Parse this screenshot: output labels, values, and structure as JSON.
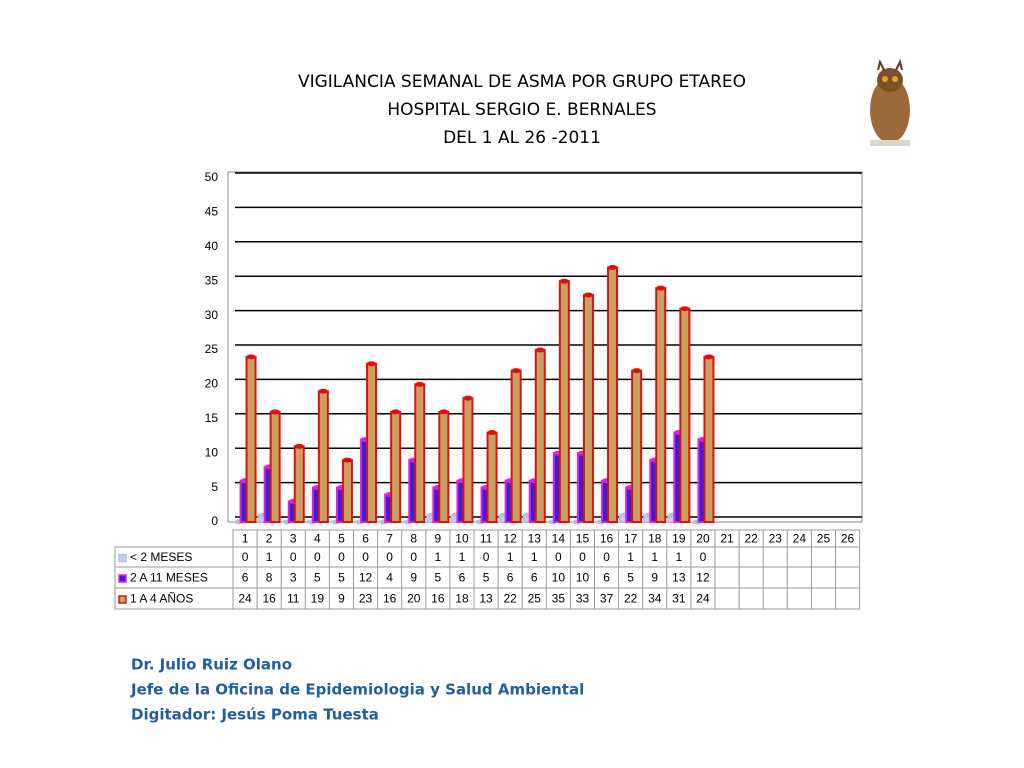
{
  "chart_data": {
    "type": "bar",
    "title": [
      "VIGILANCIA SEMANAL DE ASMA POR GRUPO ETAREO",
      "HOSPITAL SERGIO E. BERNALES",
      "DEL 1 AL 26 -2011"
    ],
    "categories": [
      "1",
      "2",
      "3",
      "4",
      "5",
      "6",
      "7",
      "8",
      "9",
      "10",
      "11",
      "12",
      "13",
      "14",
      "15",
      "16",
      "17",
      "18",
      "19",
      "20",
      "21",
      "22",
      "23",
      "24",
      "25",
      "26"
    ],
    "series": [
      {
        "name": "< 2 MESES",
        "color": "#b4bff0",
        "values": [
          0,
          1,
          0,
          0,
          0,
          0,
          0,
          0,
          1,
          1,
          0,
          1,
          1,
          0,
          0,
          0,
          1,
          1,
          1,
          0,
          null,
          null,
          null,
          null,
          null,
          null
        ]
      },
      {
        "name": "2 A 11 MESES",
        "color": "#e020e0",
        "values": [
          6,
          8,
          3,
          5,
          5,
          12,
          4,
          9,
          5,
          6,
          5,
          6,
          6,
          10,
          10,
          6,
          5,
          9,
          13,
          12,
          null,
          null,
          null,
          null,
          null,
          null
        ]
      },
      {
        "name": "1 A 4 AÑOS",
        "color": "#e01010",
        "values": [
          24,
          16,
          11,
          19,
          9,
          23,
          16,
          20,
          16,
          18,
          13,
          22,
          25,
          35,
          33,
          37,
          22,
          34,
          31,
          24,
          null,
          null,
          null,
          null,
          null,
          null
        ]
      }
    ],
    "ylim": [
      0,
      50
    ],
    "yticks": [
      0,
      5,
      10,
      15,
      20,
      25,
      30,
      35,
      40,
      45,
      50
    ],
    "grid": true
  },
  "footer": [
    "Dr.  Julio Ruiz Olano",
    "Jefe de la Oficina de Epidemiologia y  Salud Ambiental",
    "Digitador: Jesús Poma Tuesta"
  ]
}
